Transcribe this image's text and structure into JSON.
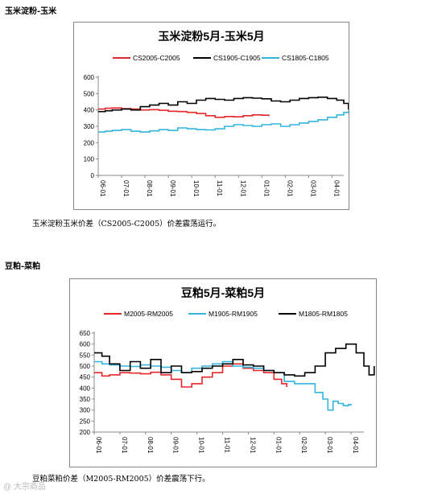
{
  "section1": {
    "heading": "玉米淀粉-玉米",
    "caption": "玉米淀粉玉米价差（CS2005-C2005）价差震荡运行。"
  },
  "section2": {
    "heading": "豆粕-菜粕",
    "caption": "豆粕菜粕价差（M2005-RM2005）价差震荡下行。"
  },
  "watermark": "@ 大宗商品",
  "chart_data": [
    {
      "type": "line",
      "title": "玉米淀粉5月-玉米5月",
      "categories": [
        "06-01",
        "07-01",
        "08-01",
        "09-01",
        "10-01",
        "11-01",
        "12-01",
        "01-01",
        "02-01",
        "03-01",
        "04-01"
      ],
      "ylim": [
        0,
        600
      ],
      "yticks": [
        0,
        100,
        200,
        300,
        400,
        500,
        600
      ],
      "legend": "top",
      "grid": false,
      "series": [
        {
          "name": "CS2005-C2005",
          "color": "#e8262a",
          "x": [
            0,
            0.3,
            0.6,
            1,
            1.4,
            1.8,
            2.2,
            2.6,
            3,
            3.4,
            3.8,
            4.2,
            4.6,
            5,
            5.4,
            5.8,
            6.2,
            6.6,
            7,
            7.3
          ],
          "values": [
            405,
            410,
            412,
            408,
            405,
            400,
            402,
            398,
            392,
            390,
            385,
            378,
            365,
            355,
            360,
            358,
            365,
            370,
            368,
            362
          ]
        },
        {
          "name": "CS1905-C1905",
          "color": "#000000",
          "x": [
            0,
            0.3,
            0.6,
            1,
            1.4,
            1.8,
            2.2,
            2.6,
            3,
            3.4,
            3.8,
            4.2,
            4.6,
            5,
            5.4,
            5.8,
            6.2,
            6.6,
            7,
            7.4,
            7.8,
            8.2,
            8.6,
            9,
            9.4,
            9.8,
            10.2,
            10.5,
            10.7,
            10.85
          ],
          "values": [
            390,
            395,
            400,
            405,
            400,
            420,
            430,
            440,
            430,
            450,
            440,
            460,
            470,
            465,
            460,
            470,
            475,
            472,
            468,
            455,
            450,
            460,
            470,
            475,
            478,
            470,
            460,
            440,
            405,
            400
          ]
        },
        {
          "name": "CS1805-C1805",
          "color": "#33b5dd",
          "x": [
            0,
            0.3,
            0.6,
            1,
            1.4,
            1.8,
            2.2,
            2.6,
            3,
            3.4,
            3.8,
            4.2,
            4.6,
            5,
            5.4,
            5.8,
            6.2,
            6.6,
            7,
            7.4,
            7.8,
            8.2,
            8.6,
            9,
            9.4,
            9.8,
            10.2,
            10.5,
            10.7,
            10.8
          ],
          "values": [
            265,
            270,
            275,
            280,
            270,
            265,
            272,
            280,
            275,
            290,
            285,
            280,
            278,
            285,
            300,
            310,
            305,
            300,
            310,
            315,
            300,
            310,
            320,
            330,
            340,
            355,
            370,
            385,
            390,
            500
          ]
        }
      ]
    },
    {
      "type": "line",
      "title": "豆粕5月-菜粕5月",
      "categories": [
        "06-01",
        "07-01",
        "08-01",
        "09-01",
        "10-01",
        "11-01",
        "12-01",
        "01-01",
        "02-01",
        "03-01",
        "04-01"
      ],
      "ylim": [
        200,
        650
      ],
      "yticks": [
        200,
        250,
        300,
        350,
        400,
        450,
        500,
        550,
        600,
        650
      ],
      "legend": "top",
      "grid": false,
      "series": [
        {
          "name": "M2005-RM2005",
          "color": "#e8262a",
          "x": [
            0,
            0.3,
            0.6,
            1,
            1.4,
            1.8,
            2.2,
            2.6,
            3,
            3.4,
            3.8,
            4.2,
            4.6,
            5,
            5.4,
            5.8,
            6.2,
            6.6,
            7,
            7.3,
            7.5
          ],
          "values": [
            470,
            455,
            460,
            470,
            468,
            465,
            472,
            460,
            440,
            405,
            420,
            450,
            470,
            500,
            510,
            490,
            480,
            470,
            440,
            420,
            405
          ]
        },
        {
          "name": "M1905-RM1905",
          "color": "#33b5dd",
          "x": [
            0,
            0.3,
            0.6,
            1,
            1.4,
            1.8,
            2.2,
            2.6,
            3,
            3.4,
            3.8,
            4.2,
            4.6,
            5,
            5.4,
            5.8,
            6.2,
            6.6,
            7,
            7.4,
            7.8,
            8.2,
            8.6,
            8.9,
            9.1,
            9.3,
            9.5,
            9.7,
            9.9,
            10
          ],
          "values": [
            520,
            510,
            505,
            500,
            498,
            505,
            500,
            495,
            480,
            470,
            490,
            500,
            510,
            520,
            500,
            495,
            490,
            480,
            470,
            430,
            420,
            420,
            380,
            350,
            300,
            340,
            330,
            320,
            325,
            320
          ]
        },
        {
          "name": "M1805-RM1805",
          "color": "#000000",
          "x": [
            0,
            0.3,
            0.6,
            1,
            1.4,
            1.8,
            2.2,
            2.6,
            3,
            3.4,
            3.8,
            4.2,
            4.6,
            5,
            5.4,
            5.8,
            6.2,
            6.6,
            7,
            7.4,
            7.8,
            8.2,
            8.6,
            9,
            9.4,
            9.8,
            10.2,
            10.5,
            10.7,
            10.9
          ],
          "values": [
            560,
            545,
            510,
            480,
            520,
            490,
            530,
            470,
            500,
            470,
            475,
            490,
            500,
            510,
            530,
            505,
            500,
            480,
            470,
            460,
            455,
            470,
            500,
            560,
            580,
            600,
            560,
            500,
            460,
            500
          ]
        }
      ]
    }
  ]
}
